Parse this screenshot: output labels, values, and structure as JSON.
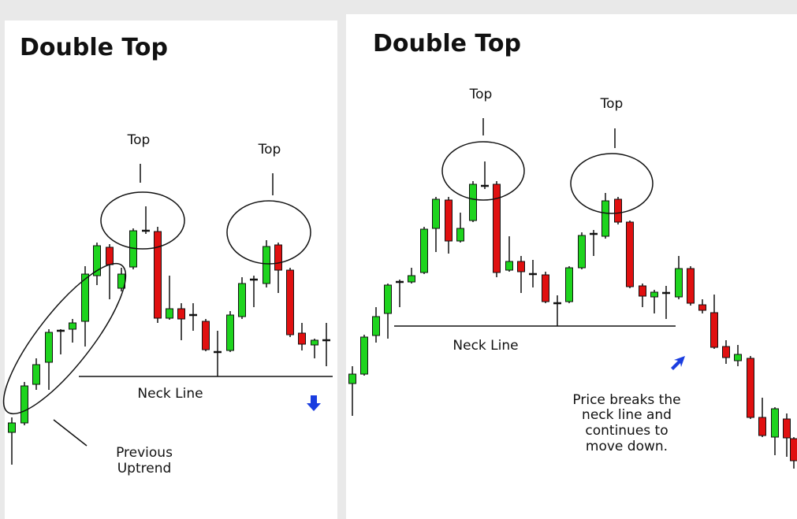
{
  "left": {
    "title": "Double Top",
    "top_labels": [
      "Top",
      "Top"
    ],
    "neck_line": "Neck Line",
    "note_lines": [
      "Previous",
      "Uptrend"
    ]
  },
  "right": {
    "title": "Double Top",
    "top_labels": [
      "Top",
      "Top"
    ],
    "neck_line": "Neck Line",
    "note_lines": [
      "Price breaks the",
      "neck line and",
      "continues to",
      "move down."
    ]
  }
}
